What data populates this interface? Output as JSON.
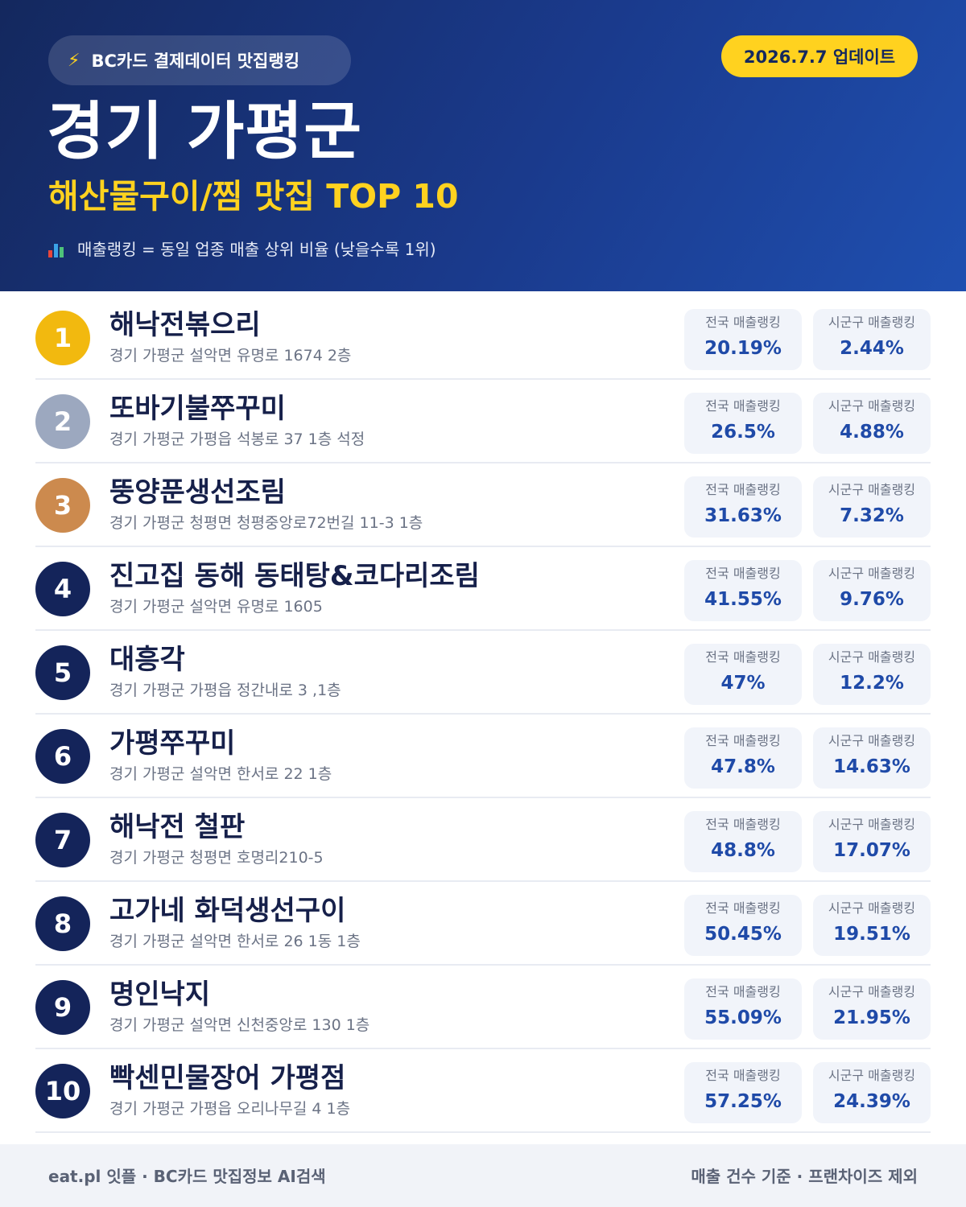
{
  "header": {
    "source_icon": "lightning-icon",
    "source_label": "BC카드 결제데이터 맛집랭킹",
    "update_label": "2026.7.7 업데이트",
    "region": "경기 가평군",
    "category": "해산물구이/찜 맛집 TOP 10",
    "note_icon": "bar-chart-icon",
    "note": "매출랭킹 = 동일 업종 매출 상위 비율 (낮을수록 1위)"
  },
  "colors": {
    "gold": "#f2b90f",
    "silver": "#9ca8bf",
    "bronze": "#cc8a4e",
    "navy": "#14245a",
    "accent_yellow": "#ffd21f",
    "value_blue": "#1f4aa8"
  },
  "ranking": [
    {
      "rank": "1",
      "name": "해낙전볶으리",
      "address": "경기 가평군 설악면 유명로 1674 2층",
      "national_label": "전국 매출랭킹",
      "national": "20.19%",
      "local_label": "시군구 매출랭킹",
      "local": "2.44%"
    },
    {
      "rank": "2",
      "name": "또바기불쭈꾸미",
      "address": "경기 가평군 가평읍 석봉로 37 1층 석정",
      "national_label": "전국 매출랭킹",
      "national": "26.5%",
      "local_label": "시군구 매출랭킹",
      "local": "4.88%"
    },
    {
      "rank": "3",
      "name": "뚱양푼생선조림",
      "address": "경기 가평군 청평면 청평중앙로72번길 11-3 1층",
      "national_label": "전국 매출랭킹",
      "national": "31.63%",
      "local_label": "시군구 매출랭킹",
      "local": "7.32%"
    },
    {
      "rank": "4",
      "name": "진고집 동해 동태탕&코다리조림",
      "address": "경기 가평군 설악면 유명로 1605",
      "national_label": "전국 매출랭킹",
      "national": "41.55%",
      "local_label": "시군구 매출랭킹",
      "local": "9.76%"
    },
    {
      "rank": "5",
      "name": "대흥각",
      "address": "경기 가평군 가평읍 정간내로 3 ,1층",
      "national_label": "전국 매출랭킹",
      "national": "47%",
      "local_label": "시군구 매출랭킹",
      "local": "12.2%"
    },
    {
      "rank": "6",
      "name": "가평쭈꾸미",
      "address": "경기 가평군 설악면 한서로 22 1층",
      "national_label": "전국 매출랭킹",
      "national": "47.8%",
      "local_label": "시군구 매출랭킹",
      "local": "14.63%"
    },
    {
      "rank": "7",
      "name": "해낙전 철판",
      "address": "경기 가평군 청평면 호명리210-5",
      "national_label": "전국 매출랭킹",
      "national": "48.8%",
      "local_label": "시군구 매출랭킹",
      "local": "17.07%"
    },
    {
      "rank": "8",
      "name": "고가네 화덕생선구이",
      "address": "경기 가평군 설악면 한서로 26 1동 1층",
      "national_label": "전국 매출랭킹",
      "national": "50.45%",
      "local_label": "시군구 매출랭킹",
      "local": "19.51%"
    },
    {
      "rank": "9",
      "name": "명인낙지",
      "address": "경기 가평군 설악면 신천중앙로 130 1층",
      "national_label": "전국 매출랭킹",
      "national": "55.09%",
      "local_label": "시군구 매출랭킹",
      "local": "21.95%"
    },
    {
      "rank": "10",
      "name": "빡센민물장어 가평점",
      "address": "경기 가평군 가평읍 오리나무길 4 1층",
      "national_label": "전국 매출랭킹",
      "national": "57.25%",
      "local_label": "시군구 매출랭킹",
      "local": "24.39%"
    }
  ],
  "footer": {
    "left": "eat.pl 잇플 · BC카드 맛집정보 AI검색",
    "right": "매출 건수 기준 · 프랜차이즈 제외"
  }
}
